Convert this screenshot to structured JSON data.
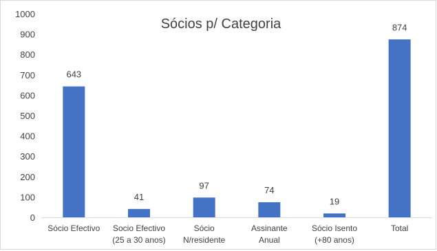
{
  "chart_data": {
    "type": "bar",
    "title": "Sócios p/ Categoria",
    "categories": [
      [
        "Sócio Efectivo"
      ],
      [
        "Socio Efectivo",
        "(25 a 30 anos)"
      ],
      [
        "Sócio",
        "N/residente"
      ],
      [
        "Assinante",
        "Anual"
      ],
      [
        "Sócio Isento",
        "(+80 anos)"
      ],
      [
        "Total"
      ]
    ],
    "values": [
      643,
      41,
      97,
      74,
      19,
      874
    ],
    "ylim": [
      0,
      1000
    ],
    "yticks": [
      0,
      100,
      200,
      300,
      400,
      500,
      600,
      700,
      800,
      900,
      1000
    ],
    "grid": false,
    "legend": "none",
    "bar_color": "#4472c4"
  }
}
